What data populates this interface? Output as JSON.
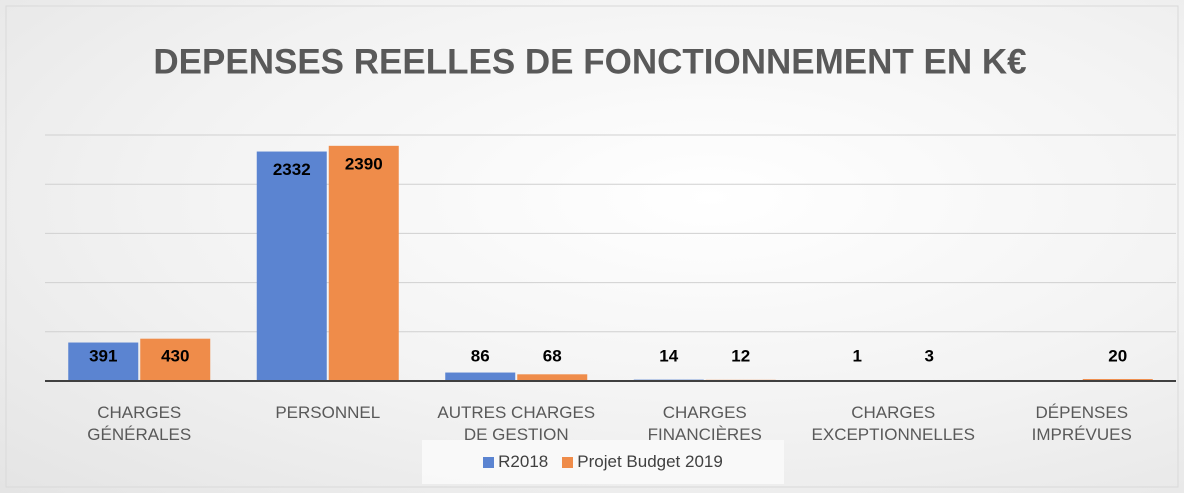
{
  "chart_data": {
    "type": "bar",
    "title": "DEPENSES REELLES DE FONCTIONNEMENT EN K€",
    "categories": [
      "CHARGES GÉNÉRALES",
      "PERSONNEL",
      "AUTRES CHARGES DE GESTION",
      "CHARGES FINANCIÈRES",
      "CHARGES EXCEPTIONNELLES",
      "DÉPENSES IMPRÉVUES"
    ],
    "series": [
      {
        "name": "R2018",
        "color": "#5b84d1",
        "values": [
          391,
          2332,
          86,
          14,
          1,
          null
        ]
      },
      {
        "name": "Projet Budget 2019",
        "color": "#ef8c4a",
        "values": [
          430,
          2390,
          68,
          12,
          3,
          20
        ]
      }
    ],
    "ylim": [
      0,
      2500
    ],
    "yticks": [
      0,
      500,
      1000,
      1500,
      2000,
      2500
    ],
    "grid": true
  }
}
